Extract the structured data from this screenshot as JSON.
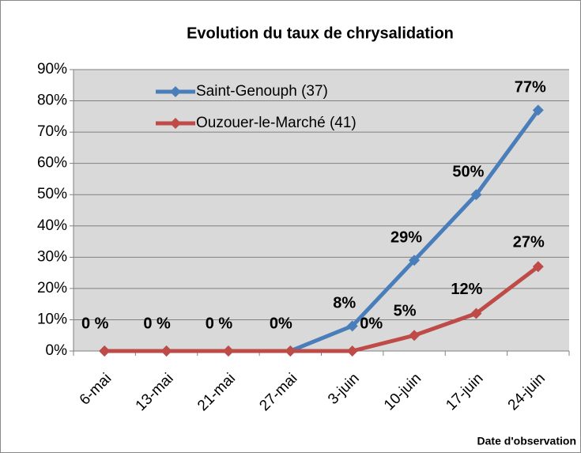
{
  "chart_data": {
    "type": "line",
    "title": "Evolution du taux de chrysalidation",
    "x_label": "Date d'observation",
    "categories": [
      "6-mai",
      "13-mai",
      "21-mai",
      "27-mai",
      "3-juin",
      "10-juin",
      "17-juin",
      "24-juin"
    ],
    "series": [
      {
        "name": "Saint-Genouph (37)",
        "color": "#4a7ebb",
        "values": [
          0,
          0,
          0,
          0,
          8,
          29,
          50,
          77
        ],
        "value_labels": [
          null,
          null,
          null,
          null,
          "8%",
          "29%",
          "50%",
          "77%"
        ]
      },
      {
        "name": "Ouzouer-le-Marché (41)",
        "color": "#be4b48",
        "values": [
          0,
          0,
          0,
          0,
          0,
          5,
          12,
          27
        ],
        "value_labels": [
          "0 %",
          "0 %",
          "0 %",
          "0%",
          "0%",
          "5%",
          "12%",
          "27%"
        ]
      }
    ],
    "ylim": [
      0,
      90
    ],
    "yticks": [
      {
        "value": 0,
        "label": "0%"
      },
      {
        "value": 10,
        "label": "10%"
      },
      {
        "value": 20,
        "label": "20%"
      },
      {
        "value": 30,
        "label": "30%"
      },
      {
        "value": 40,
        "label": "40%"
      },
      {
        "value": 50,
        "label": "50%"
      },
      {
        "value": 60,
        "label": "60%"
      },
      {
        "value": 70,
        "label": "70%"
      },
      {
        "value": 80,
        "label": "80%"
      },
      {
        "value": 90,
        "label": "90%"
      }
    ],
    "grid": true,
    "legend": "top-left"
  }
}
